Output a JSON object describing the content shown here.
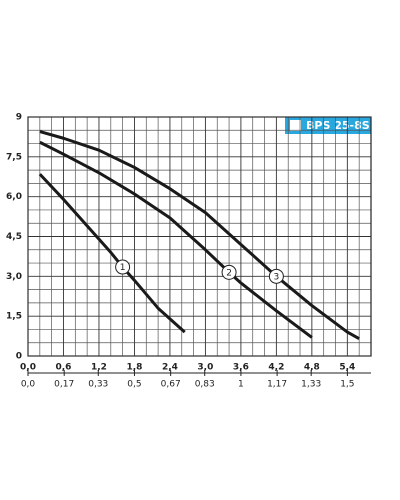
{
  "chart_data": {
    "type": "line",
    "title": "BPS 25-8S",
    "xlim": [
      0,
      5.8
    ],
    "ylim": [
      0,
      9
    ],
    "x2lim": [
      0,
      1.611
    ],
    "xticks": [
      {
        "value": 0,
        "label": "0,0"
      },
      {
        "value": 0.6,
        "label": "0,6"
      },
      {
        "value": 1.2,
        "label": "1,2"
      },
      {
        "value": 1.8,
        "label": "1,8"
      },
      {
        "value": 2.4,
        "label": "2,4"
      },
      {
        "value": 3.0,
        "label": "3,0"
      },
      {
        "value": 3.6,
        "label": "3,6"
      },
      {
        "value": 4.2,
        "label": "4,2"
      },
      {
        "value": 4.8,
        "label": "4,8"
      },
      {
        "value": 5.4,
        "label": "5,4"
      }
    ],
    "x2ticks": [
      {
        "value": 0,
        "label": "0,0"
      },
      {
        "value": 0.17,
        "label": "0,17"
      },
      {
        "value": 0.33,
        "label": "0,33"
      },
      {
        "value": 0.5,
        "label": "0,5"
      },
      {
        "value": 0.67,
        "label": "0,67"
      },
      {
        "value": 0.83,
        "label": "0,83"
      },
      1,
      {
        "value": 1.17,
        "label": "1,17"
      },
      {
        "value": 1.33,
        "label": "1,33"
      },
      {
        "value": 1.5,
        "label": "1,5"
      }
    ],
    "yticks": [
      0,
      {
        "value": 1.5,
        "label": "1,5"
      },
      {
        "value": 3.0,
        "label": "3,0"
      },
      {
        "value": 4.5,
        "label": "4,5"
      },
      {
        "value": 6.0,
        "label": "6,0"
      },
      {
        "value": 7.5,
        "label": "7,5"
      },
      9
    ],
    "grid": true,
    "color": "#1a1a1a",
    "title_color": "#29a8e0",
    "series": [
      {
        "name": "1",
        "x": [
          0.2,
          0.6,
          1.0,
          1.4,
          1.6,
          1.8,
          2.2,
          2.65
        ],
        "values": [
          6.85,
          5.9,
          4.9,
          3.9,
          3.35,
          2.85,
          1.8,
          0.9
        ]
      },
      {
        "name": "2",
        "x": [
          0.2,
          0.6,
          1.2,
          1.8,
          2.4,
          3.0,
          3.4,
          3.6,
          4.2,
          4.8
        ],
        "values": [
          8.05,
          7.6,
          6.9,
          6.1,
          5.2,
          4.0,
          3.15,
          2.75,
          1.7,
          0.7
        ]
      },
      {
        "name": "3",
        "x": [
          0.2,
          0.6,
          1.2,
          1.8,
          2.4,
          3.0,
          3.6,
          4.2,
          4.8,
          5.4,
          5.6
        ],
        "values": [
          8.45,
          8.2,
          7.75,
          7.1,
          6.3,
          5.4,
          4.2,
          3.0,
          1.9,
          0.9,
          0.65
        ]
      }
    ]
  }
}
